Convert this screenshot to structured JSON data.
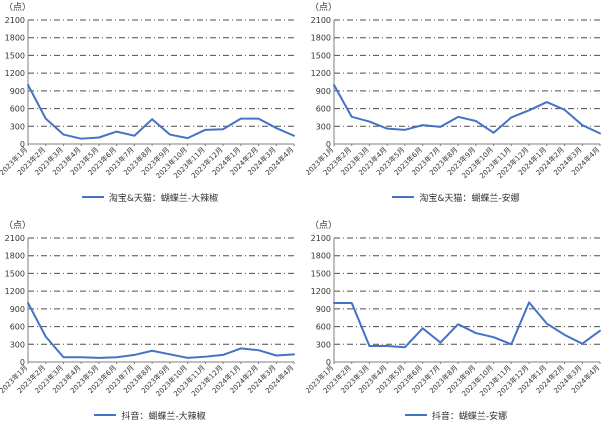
{
  "chart_data": [
    {
      "type": "line",
      "unit_label": "（点）",
      "categories": [
        "2023年1月",
        "2023年2月",
        "2023年3月",
        "2023年4月",
        "2023年5月",
        "2023年6月",
        "2023年7月",
        "2023年8月",
        "2023年9月",
        "2023年10月",
        "2023年11月",
        "2023年12月",
        "2024年1月",
        "2024年2月",
        "2024年3月",
        "2024年4月"
      ],
      "ylim": [
        0,
        2100
      ],
      "yticks": [
        "0",
        "300",
        "600",
        "900",
        "1200",
        "1500",
        "1800",
        "2100"
      ],
      "grid": true,
      "legend_position": "bottom",
      "colors": {
        "line": "#4472C4"
      },
      "series": [
        {
          "name": "淘宝&天猫：蝴蝶兰-大辣椒",
          "values": [
            1000,
            430,
            160,
            90,
            110,
            210,
            140,
            420,
            160,
            100,
            240,
            250,
            430,
            430,
            270,
            140
          ]
        }
      ]
    },
    {
      "type": "line",
      "unit_label": "（点）",
      "categories": [
        "2023年1月",
        "2023年2月",
        "2023年3月",
        "2023年4月",
        "2023年5月",
        "2023年6月",
        "2023年7月",
        "2023年8月",
        "2023年9月",
        "2023年10月",
        "2023年11月",
        "2023年12月",
        "2024年1月",
        "2024年2月",
        "2024年3月",
        "2024年4月"
      ],
      "ylim": [
        0,
        2100
      ],
      "yticks": [
        "0",
        "300",
        "600",
        "900",
        "1200",
        "1500",
        "1800",
        "2100"
      ],
      "grid": true,
      "legend_position": "bottom",
      "colors": {
        "line": "#4472C4"
      },
      "series": [
        {
          "name": "淘宝&天猫：蝴蝶兰-安娜",
          "values": [
            1000,
            460,
            380,
            260,
            240,
            320,
            290,
            460,
            390,
            190,
            450,
            570,
            710,
            580,
            320,
            180
          ]
        }
      ]
    },
    {
      "type": "line",
      "unit_label": "（点）",
      "categories": [
        "2023年1月",
        "2023年2月",
        "2023年3月",
        "2023年4月",
        "2023年5月",
        "2023年6月",
        "2023年7月",
        "2023年8月",
        "2023年9月",
        "2023年10月",
        "2023年11月",
        "2023年12月",
        "2024年1月",
        "2024年2月",
        "2024年3月",
        "2024年4月"
      ],
      "ylim": [
        0,
        2100
      ],
      "yticks": [
        "0",
        "300",
        "600",
        "900",
        "1200",
        "1500",
        "1800",
        "2100"
      ],
      "grid": true,
      "legend_position": "bottom",
      "colors": {
        "line": "#4472C4"
      },
      "series": [
        {
          "name": "抖音：蝴蝶兰-大辣椒",
          "values": [
            1000,
            430,
            80,
            80,
            70,
            80,
            120,
            190,
            130,
            70,
            90,
            120,
            230,
            200,
            110,
            130
          ]
        }
      ]
    },
    {
      "type": "line",
      "unit_label": "（点）",
      "categories": [
        "2023年1月",
        "2023年2月",
        "2023年3月",
        "2023年4月",
        "2023年5月",
        "2023年6月",
        "2023年7月",
        "2023年8月",
        "2023年9月",
        "2023年10月",
        "2023年11月",
        "2023年12月",
        "2024年1月",
        "2024年2月",
        "2024年3月",
        "2024年4月"
      ],
      "ylim": [
        0,
        2100
      ],
      "yticks": [
        "0",
        "300",
        "600",
        "900",
        "1200",
        "1500",
        "1800",
        "2100"
      ],
      "grid": true,
      "legend_position": "bottom",
      "colors": {
        "line": "#4472C4"
      },
      "series": [
        {
          "name": "抖音：蝴蝶兰-安娜",
          "values": [
            1000,
            1000,
            270,
            270,
            250,
            570,
            330,
            640,
            490,
            420,
            300,
            1010,
            650,
            460,
            310,
            530
          ]
        }
      ]
    }
  ]
}
